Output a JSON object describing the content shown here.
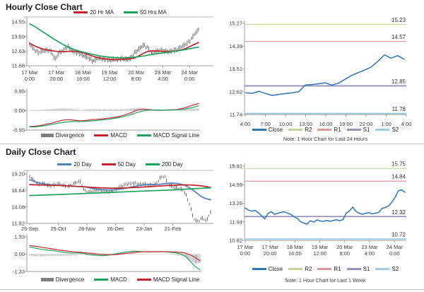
{
  "palette": {
    "bar": "#1c1c1c",
    "red": "#c2252b",
    "green": "#1fa35c",
    "blue": "#2e75b6",
    "steel": "#4f81bd",
    "gray": "#7f7f7f",
    "r2": "#c3d69b",
    "r1": "#d99a96",
    "s1": "#9a8fbf",
    "s2": "#9fccdc",
    "axis": "#9e9e9e",
    "tick_label": "#3a3a3a",
    "level_label": "#333333"
  },
  "chart_data": [
    {
      "id": "hourly_price",
      "type": "candlestick+line",
      "title": "Hourly Close Chart",
      "ylim": [
        11.68,
        14.55
      ],
      "yticks": [
        "14.55",
        "13.59",
        "12.63",
        "11.68"
      ],
      "xticks": [
        [
          "17 Mar",
          "0:00"
        ],
        [
          "17 Mar",
          "20:00"
        ],
        [
          "18 Mar",
          "16:00"
        ],
        [
          "19 Mar",
          "12:00"
        ],
        [
          "20 Mar",
          "8:00"
        ],
        [
          "23 Mar",
          "4:00"
        ],
        [
          "24 Mar",
          "0:00"
        ]
      ],
      "series": [
        {
          "name": "Close",
          "type": "bars",
          "color_key": "bar",
          "values": [
            13.1,
            12.75,
            12.55,
            12.65,
            12.7,
            12.62,
            12.1,
            12.55,
            12.68,
            12.95,
            12.65,
            12.55,
            12.45,
            12.3,
            12.18,
            11.95,
            12.2,
            12.15,
            12.1,
            12.05,
            12.12,
            12.08,
            12.15,
            12.1,
            12.2,
            12.55,
            12.8,
            13.05,
            12.85,
            12.5,
            12.62,
            12.7,
            12.65,
            12.6,
            12.68,
            12.75,
            12.95,
            13.1,
            13.3,
            13.75,
            14.05
          ]
        },
        {
          "name": "20 Hr MA",
          "type": "line",
          "color_key": "red",
          "values": [
            13.15,
            13.0,
            12.88,
            12.78,
            12.72,
            12.68,
            12.64,
            12.6,
            12.6,
            12.62,
            12.63,
            12.62,
            12.58,
            12.5,
            12.4,
            12.3,
            12.22,
            12.16,
            12.12,
            12.1,
            12.08,
            12.08,
            12.1,
            12.12,
            12.14,
            12.2,
            12.35,
            12.5,
            12.62,
            12.66,
            12.65,
            12.63,
            12.62,
            12.62,
            12.63,
            12.66,
            12.72,
            12.82,
            12.95,
            13.08,
            13.2
          ]
        },
        {
          "name": "50 Hrs MA",
          "type": "line",
          "color_key": "green",
          "values": [
            14.42,
            14.28,
            14.1,
            13.92,
            13.74,
            13.56,
            13.38,
            13.22,
            13.06,
            12.92,
            12.8,
            12.7,
            12.62,
            12.55,
            12.48,
            12.42,
            12.36,
            12.31,
            12.27,
            12.24,
            12.22,
            12.21,
            12.2,
            12.21,
            12.22,
            12.25,
            12.28,
            12.32,
            12.37,
            12.42,
            12.46,
            12.5,
            12.54,
            12.58,
            12.62,
            12.66,
            12.7,
            12.75,
            12.8,
            12.85,
            12.9
          ]
        }
      ],
      "legend": [
        {
          "label": "20 Hr MA",
          "color_key": "red"
        },
        {
          "label": "50 Hrs MA",
          "color_key": "green"
        }
      ]
    },
    {
      "id": "hourly_macd",
      "type": "line+bar",
      "ylim": [
        -0.95,
        0.95
      ],
      "yticks": [
        "0.95",
        "0.00",
        "-0.95"
      ],
      "series": [
        {
          "name": "MACD",
          "type": "line",
          "color_key": "red",
          "values": [
            -0.78,
            -0.76,
            -0.72,
            -0.66,
            -0.6,
            -0.52,
            -0.46,
            -0.44,
            -0.47,
            -0.5,
            -0.48,
            -0.44,
            -0.42,
            -0.4,
            -0.37,
            -0.33,
            -0.28,
            -0.2,
            -0.1,
            0.02,
            0.08,
            0.06,
            0.03,
            0.02,
            0.03,
            0.04,
            0.05,
            0.1,
            0.18,
            0.27,
            0.35
          ]
        },
        {
          "name": "MACD Signal Line",
          "type": "line",
          "color_key": "green",
          "values": [
            -0.8,
            -0.79,
            -0.76,
            -0.72,
            -0.67,
            -0.62,
            -0.57,
            -0.54,
            -0.53,
            -0.53,
            -0.52,
            -0.5,
            -0.48,
            -0.45,
            -0.42,
            -0.38,
            -0.33,
            -0.27,
            -0.19,
            -0.1,
            -0.02,
            0.02,
            0.03,
            0.03,
            0.03,
            0.03,
            0.04,
            0.06,
            0.1,
            0.16,
            0.24
          ]
        }
      ],
      "divergence": {
        "from": "MACD",
        "minus": "MACD Signal Line"
      },
      "legend": [
        {
          "label": "Divergence",
          "color_key": "gray",
          "swatch": "bar"
        },
        {
          "label": "MACD",
          "color_key": "red"
        },
        {
          "label": "MACD Signal Line",
          "color_key": "green"
        }
      ]
    },
    {
      "id": "hourly_sr",
      "type": "line",
      "ylim": [
        11.74,
        15.27
      ],
      "yticks": [
        "15.27",
        "14.39",
        "13.51",
        "12.62",
        "11.74"
      ],
      "xticks": [
        "4:00",
        "7:00",
        "10:00",
        "13:00",
        "16:00",
        "19:00",
        "22:00",
        "1:00",
        "4:00"
      ],
      "levels": [
        {
          "name": "R2",
          "label": "15.23",
          "value": 15.23,
          "color_key": "r2"
        },
        {
          "name": "R1",
          "label": "14.57",
          "value": 14.57,
          "color_key": "r1"
        },
        {
          "name": "S1",
          "label": "12.85",
          "value": 12.85,
          "color_key": "s1"
        },
        {
          "name": "S2",
          "label": "11.78",
          "value": 11.78,
          "color_key": "s2"
        }
      ],
      "series": [
        {
          "name": "Close",
          "type": "line",
          "color_key": "blue",
          "values": [
            12.58,
            12.56,
            12.64,
            12.55,
            12.48,
            12.52,
            12.55,
            12.58,
            12.62,
            12.88,
            12.9,
            12.93,
            12.97,
            12.88,
            12.95,
            13.1,
            13.25,
            13.36,
            13.46,
            13.58,
            13.8,
            14.05,
            13.92,
            14.02,
            13.88
          ]
        }
      ],
      "legend": [
        {
          "label": "Close",
          "color_key": "blue"
        },
        {
          "label": "R2",
          "color_key": "r2"
        },
        {
          "label": "R1",
          "color_key": "r1"
        },
        {
          "label": "S1",
          "color_key": "s1"
        },
        {
          "label": "S2",
          "color_key": "s2"
        }
      ],
      "note": "Note: 1 Hour Chart for Last 24 Hours"
    },
    {
      "id": "daily_price",
      "type": "candlestick+line",
      "title": "Daily Close Chart",
      "ylim": [
        11.52,
        19.2
      ],
      "yticks": [
        "19.20",
        "16.64",
        "14.08",
        "11.52"
      ],
      "xticks": [
        "25-Sep",
        "25-Oct",
        "26-Nov",
        "26-Dec",
        "23-Jan",
        "21-Feb"
      ],
      "series": [
        {
          "name": "Close",
          "type": "bars",
          "color_key": "bar",
          "values": [
            18.8,
            18.2,
            17.6,
            17.75,
            17.5,
            17.3,
            17.55,
            17.65,
            17.4,
            17.25,
            17.45,
            17.9,
            18.05,
            16.6,
            16.4,
            16.55,
            16.7,
            16.55,
            16.45,
            16.4,
            16.6,
            17.1,
            17.4,
            17.6,
            17.7,
            17.8,
            17.55,
            17.65,
            17.5,
            17.45,
            17.55,
            18.6,
            18.9,
            17.6,
            17.2,
            17.0,
            16.9,
            16.2,
            14.5,
            12.2,
            11.8,
            12.4,
            11.9,
            13.3
          ]
        },
        {
          "name": "20 Day",
          "type": "line",
          "color_key": "steel",
          "values": [
            18.3,
            18.05,
            17.85,
            17.7,
            17.6,
            17.52,
            17.47,
            17.43,
            17.4,
            17.36,
            17.3,
            17.26,
            17.24,
            17.2,
            17.08,
            16.95,
            16.85,
            16.78,
            16.74,
            16.72,
            16.74,
            16.8,
            16.9,
            17.02,
            17.15,
            17.28,
            17.4,
            17.5,
            17.56,
            17.58,
            17.57,
            17.6,
            17.68,
            17.75,
            17.77,
            17.72,
            17.6,
            17.4,
            17.05,
            16.6,
            16.1,
            15.6,
            15.35,
            15.2
          ]
        },
        {
          "name": "50 Day",
          "type": "line",
          "color_key": "red",
          "values": [
            17.55,
            17.5,
            17.48,
            17.45,
            17.42,
            17.4,
            17.35,
            17.3,
            17.25,
            17.18,
            17.12,
            17.06,
            17.02,
            17.0,
            17.0,
            17.02,
            17.06,
            17.1,
            17.16,
            17.22,
            17.28,
            17.34,
            17.4,
            17.45,
            17.48,
            17.5,
            17.48,
            17.4,
            17.28,
            17.1
          ]
        },
        {
          "name": "200 Day",
          "type": "line",
          "color_key": "green",
          "values": [
            15.85,
            15.9,
            15.95,
            16.0,
            16.06,
            16.12,
            16.18,
            16.24,
            16.3,
            16.36,
            16.42,
            16.48,
            16.54,
            16.6,
            16.66,
            16.72,
            16.8,
            16.88,
            16.96,
            17.05
          ]
        }
      ],
      "legend": [
        {
          "label": "20 Day",
          "color_key": "steel"
        },
        {
          "label": "50 Day",
          "color_key": "red"
        },
        {
          "label": "200 Day",
          "color_key": "green"
        }
      ]
    },
    {
      "id": "daily_macd",
      "type": "line+bar",
      "ylim": [
        -1.33,
        1.33
      ],
      "yticks": [
        "1.33",
        "0.00",
        "-1.33"
      ],
      "series": [
        {
          "name": "MACD",
          "type": "line",
          "color_key": "green",
          "values": [
            0.55,
            0.48,
            0.4,
            0.34,
            0.3,
            0.26,
            0.2,
            0.14,
            0.1,
            0.08,
            0.1,
            0.06,
            0.0,
            -0.06,
            -0.1,
            -0.12,
            -0.08,
            -0.02,
            0.05,
            0.12,
            0.18,
            0.22,
            0.22,
            0.2,
            0.18,
            0.18,
            0.18,
            0.2,
            0.18,
            0.14,
            0.1,
            0.02,
            -0.15,
            -0.55,
            -0.95,
            -1.2
          ]
        },
        {
          "name": "MACD Signal Line",
          "type": "line",
          "color_key": "red",
          "values": [
            0.66,
            0.62,
            0.56,
            0.5,
            0.44,
            0.38,
            0.32,
            0.27,
            0.22,
            0.18,
            0.15,
            0.12,
            0.09,
            0.05,
            0.01,
            -0.02,
            -0.04,
            -0.04,
            -0.02,
            0.02,
            0.07,
            0.12,
            0.16,
            0.18,
            0.19,
            0.19,
            0.19,
            0.19,
            0.19,
            0.18,
            0.17,
            0.14,
            0.08,
            -0.05,
            -0.25,
            -0.5
          ]
        }
      ],
      "divergence": {
        "from": "MACD",
        "minus": "MACD Signal Line"
      },
      "legend": [
        {
          "label": "Divergence",
          "color_key": "gray",
          "swatch": "bar"
        },
        {
          "label": "MACD",
          "color_key": "green"
        },
        {
          "label": "MACD Signal Line",
          "color_key": "red"
        }
      ]
    },
    {
      "id": "weekly_sr",
      "type": "line",
      "ylim": [
        10.62,
        15.91
      ],
      "yticks": [
        "15.91",
        "14.59",
        "13.26",
        "11.94",
        "10.62"
      ],
      "xticks": [
        [
          "17 Mar",
          "0:00"
        ],
        [
          "17 Mar",
          "20:00"
        ],
        [
          "18 Mar",
          "16:00"
        ],
        [
          "19 Mar",
          "12:00"
        ],
        [
          "20 Mar",
          "8:00"
        ],
        [
          "23 Mar",
          "4:00"
        ],
        [
          "24 Mar",
          "0:00"
        ]
      ],
      "levels": [
        {
          "name": "R2",
          "label": "15.75",
          "value": 15.75,
          "color_key": "r2"
        },
        {
          "name": "R1",
          "label": "14.84",
          "value": 14.84,
          "color_key": "r1"
        },
        {
          "name": "S1",
          "label": "12.32",
          "value": 12.32,
          "color_key": "s1"
        },
        {
          "name": "S2",
          "label": "10.72",
          "value": 10.72,
          "color_key": "s2"
        }
      ],
      "series": [
        {
          "name": "Close",
          "type": "line",
          "color_key": "blue",
          "values": [
            12.92,
            12.78,
            12.7,
            12.76,
            12.6,
            12.38,
            12.15,
            12.55,
            12.66,
            12.48,
            12.55,
            12.62,
            12.66,
            12.55,
            12.48,
            12.3,
            12.18,
            11.95,
            11.85,
            11.78,
            12.02,
            11.92,
            12.08,
            12.0,
            11.98,
            12.04,
            11.98,
            12.04,
            12.08,
            12.02,
            12.1,
            12.56,
            12.72,
            13.0,
            12.68,
            12.55,
            12.48,
            12.56,
            12.6,
            12.5,
            12.56,
            12.62,
            12.9,
            12.96,
            13.08,
            13.35,
            13.7,
            14.15,
            14.22,
            14.05
          ]
        }
      ],
      "legend": [
        {
          "label": "Close",
          "color_key": "blue"
        },
        {
          "label": "R2",
          "color_key": "r2"
        },
        {
          "label": "R1",
          "color_key": "r1"
        },
        {
          "label": "S1",
          "color_key": "s1"
        },
        {
          "label": "S2",
          "color_key": "s2"
        }
      ],
      "note": "Note: 1 Hour Chart for Last 1 Week"
    }
  ]
}
